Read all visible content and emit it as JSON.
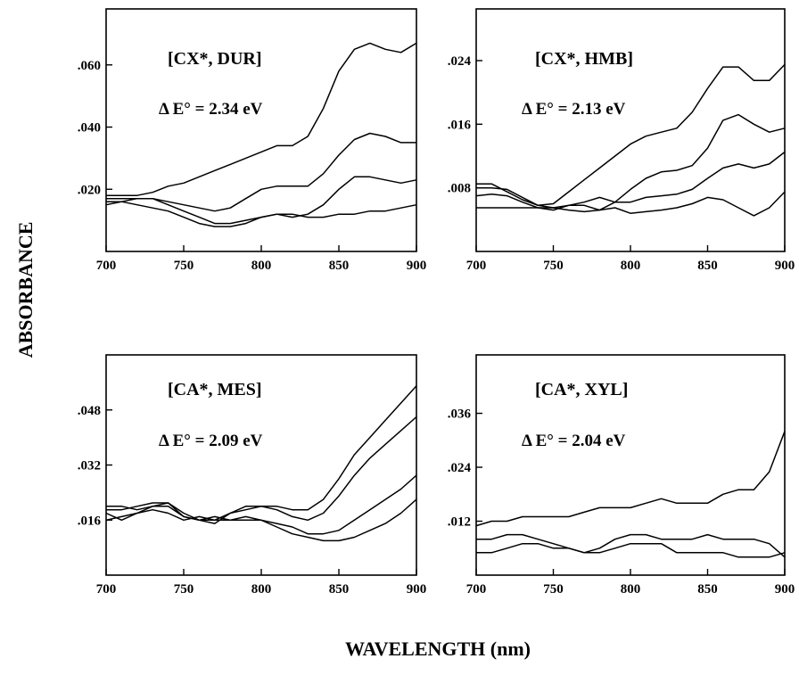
{
  "figure": {
    "ylabel": "ABSORBANCE",
    "xlabel": "WAVELENGTH (nm)"
  },
  "chart_data": [
    {
      "type": "line",
      "title": "[CX*, DUR]",
      "delta_e": "Δ E° = 2.34 eV",
      "xlim": [
        700,
        900
      ],
      "ylim": [
        0,
        0.078
      ],
      "x_ticks": [
        700,
        750,
        800,
        850,
        900
      ],
      "x_tick_labels": [
        "700",
        "750",
        "800",
        "850",
        "900"
      ],
      "y_ticks": [
        0.02,
        0.04,
        0.06
      ],
      "y_tick_labels": [
        ".020",
        ".040",
        ".060"
      ],
      "series": [
        {
          "x": [
            700,
            710,
            720,
            730,
            740,
            750,
            760,
            770,
            780,
            790,
            800,
            810,
            820,
            830,
            840,
            850,
            860,
            870,
            880,
            890,
            900
          ],
          "y": [
            0.018,
            0.018,
            0.018,
            0.019,
            0.021,
            0.022,
            0.024,
            0.026,
            0.028,
            0.03,
            0.032,
            0.034,
            0.034,
            0.037,
            0.046,
            0.058,
            0.065,
            0.067,
            0.065,
            0.064,
            0.067
          ]
        },
        {
          "x": [
            700,
            710,
            720,
            730,
            740,
            750,
            760,
            770,
            780,
            790,
            800,
            810,
            820,
            830,
            840,
            850,
            860,
            870,
            880,
            890,
            900
          ],
          "y": [
            0.017,
            0.017,
            0.017,
            0.017,
            0.016,
            0.015,
            0.014,
            0.013,
            0.014,
            0.017,
            0.02,
            0.021,
            0.021,
            0.021,
            0.025,
            0.031,
            0.036,
            0.038,
            0.037,
            0.035,
            0.035
          ]
        },
        {
          "x": [
            700,
            710,
            720,
            730,
            740,
            750,
            760,
            770,
            780,
            790,
            800,
            810,
            820,
            830,
            840,
            850,
            860,
            870,
            880,
            890,
            900
          ],
          "y": [
            0.016,
            0.016,
            0.017,
            0.017,
            0.015,
            0.013,
            0.011,
            0.009,
            0.009,
            0.01,
            0.011,
            0.012,
            0.011,
            0.012,
            0.015,
            0.02,
            0.024,
            0.024,
            0.023,
            0.022,
            0.023
          ]
        },
        {
          "x": [
            700,
            710,
            720,
            730,
            740,
            750,
            760,
            770,
            780,
            790,
            800,
            810,
            820,
            830,
            840,
            850,
            860,
            870,
            880,
            890,
            900
          ],
          "y": [
            0.015,
            0.016,
            0.015,
            0.014,
            0.013,
            0.011,
            0.009,
            0.008,
            0.008,
            0.009,
            0.011,
            0.012,
            0.012,
            0.011,
            0.011,
            0.012,
            0.012,
            0.013,
            0.013,
            0.014,
            0.015
          ]
        }
      ]
    },
    {
      "type": "line",
      "title": "[CX*, HMB]",
      "delta_e": "Δ E° = 2.13 eV",
      "xlim": [
        700,
        900
      ],
      "ylim": [
        0,
        0.0305
      ],
      "x_ticks": [
        700,
        750,
        800,
        850,
        900
      ],
      "x_tick_labels": [
        "700",
        "750",
        "800",
        "850",
        "900"
      ],
      "y_ticks": [
        0.008,
        0.016,
        0.024
      ],
      "y_tick_labels": [
        ".008",
        ".016",
        ".024"
      ],
      "series": [
        {
          "x": [
            700,
            710,
            720,
            730,
            740,
            750,
            760,
            770,
            780,
            790,
            800,
            810,
            820,
            830,
            840,
            850,
            860,
            870,
            880,
            890,
            900
          ],
          "y": [
            0.0085,
            0.0085,
            0.0075,
            0.0065,
            0.0058,
            0.006,
            0.0075,
            0.009,
            0.0105,
            0.012,
            0.0135,
            0.0145,
            0.015,
            0.0155,
            0.0175,
            0.0205,
            0.0232,
            0.0232,
            0.0215,
            0.0215,
            0.0235
          ]
        },
        {
          "x": [
            700,
            710,
            720,
            730,
            740,
            750,
            760,
            770,
            780,
            790,
            800,
            810,
            820,
            830,
            840,
            850,
            860,
            870,
            880,
            890,
            900
          ],
          "y": [
            0.008,
            0.008,
            0.0078,
            0.0068,
            0.0058,
            0.0055,
            0.0058,
            0.0058,
            0.0052,
            0.0062,
            0.0078,
            0.0092,
            0.01,
            0.0102,
            0.0108,
            0.013,
            0.0165,
            0.0172,
            0.016,
            0.015,
            0.0155
          ]
        },
        {
          "x": [
            700,
            710,
            720,
            730,
            740,
            750,
            760,
            770,
            780,
            790,
            800,
            810,
            820,
            830,
            840,
            850,
            860,
            870,
            880,
            890,
            900
          ],
          "y": [
            0.007,
            0.0072,
            0.007,
            0.0062,
            0.0055,
            0.0052,
            0.0058,
            0.0062,
            0.0068,
            0.0062,
            0.0062,
            0.0068,
            0.007,
            0.0072,
            0.0078,
            0.0092,
            0.0105,
            0.011,
            0.0105,
            0.011,
            0.0125
          ]
        },
        {
          "x": [
            700,
            710,
            720,
            730,
            740,
            750,
            760,
            770,
            780,
            790,
            800,
            810,
            820,
            830,
            840,
            850,
            860,
            870,
            880,
            890,
            900
          ],
          "y": [
            0.0055,
            0.0055,
            0.0055,
            0.0055,
            0.0055,
            0.0055,
            0.0052,
            0.005,
            0.0052,
            0.0055,
            0.0048,
            0.005,
            0.0052,
            0.0055,
            0.006,
            0.0068,
            0.0065,
            0.0055,
            0.0045,
            0.0055,
            0.0075
          ]
        }
      ]
    },
    {
      "type": "line",
      "title": "[CA*, MES]",
      "delta_e": "Δ E° = 2.09 eV",
      "xlim": [
        700,
        900
      ],
      "ylim": [
        0,
        0.064
      ],
      "x_ticks": [
        700,
        750,
        800,
        850,
        900
      ],
      "x_tick_labels": [
        "700",
        "750",
        "800",
        "850",
        "900"
      ],
      "y_ticks": [
        0.016,
        0.032,
        0.048
      ],
      "y_tick_labels": [
        ".016",
        ".032",
        ".048"
      ],
      "series": [
        {
          "x": [
            700,
            710,
            720,
            730,
            740,
            750,
            760,
            770,
            780,
            790,
            800,
            810,
            820,
            830,
            840,
            850,
            860,
            870,
            880,
            890,
            900
          ],
          "y": [
            0.02,
            0.02,
            0.019,
            0.02,
            0.021,
            0.017,
            0.016,
            0.016,
            0.018,
            0.019,
            0.02,
            0.02,
            0.019,
            0.019,
            0.022,
            0.028,
            0.035,
            0.04,
            0.045,
            0.05,
            0.055
          ]
        },
        {
          "x": [
            700,
            710,
            720,
            730,
            740,
            750,
            760,
            770,
            780,
            790,
            800,
            810,
            820,
            830,
            840,
            850,
            860,
            870,
            880,
            890,
            900
          ],
          "y": [
            0.019,
            0.019,
            0.02,
            0.021,
            0.021,
            0.018,
            0.016,
            0.015,
            0.018,
            0.02,
            0.02,
            0.019,
            0.017,
            0.016,
            0.018,
            0.023,
            0.029,
            0.034,
            0.038,
            0.042,
            0.046
          ]
        },
        {
          "x": [
            700,
            710,
            720,
            730,
            740,
            750,
            760,
            770,
            780,
            790,
            800,
            810,
            820,
            830,
            840,
            850,
            860,
            870,
            880,
            890,
            900
          ],
          "y": [
            0.016,
            0.017,
            0.018,
            0.019,
            0.018,
            0.016,
            0.017,
            0.016,
            0.016,
            0.017,
            0.016,
            0.015,
            0.014,
            0.012,
            0.012,
            0.013,
            0.016,
            0.019,
            0.022,
            0.025,
            0.029
          ]
        },
        {
          "x": [
            700,
            710,
            720,
            730,
            740,
            750,
            760,
            770,
            780,
            790,
            800,
            810,
            820,
            830,
            840,
            850,
            860,
            870,
            880,
            890,
            900
          ],
          "y": [
            0.018,
            0.016,
            0.018,
            0.02,
            0.02,
            0.017,
            0.016,
            0.017,
            0.016,
            0.016,
            0.016,
            0.014,
            0.012,
            0.011,
            0.01,
            0.01,
            0.011,
            0.013,
            0.015,
            0.018,
            0.022
          ]
        }
      ]
    },
    {
      "type": "line",
      "title": "[CA*, XYL]",
      "delta_e": "Δ E° = 2.04 eV",
      "xlim": [
        700,
        900
      ],
      "ylim": [
        0,
        0.049
      ],
      "x_ticks": [
        700,
        750,
        800,
        850,
        900
      ],
      "x_tick_labels": [
        "700",
        "750",
        "800",
        "850",
        "900"
      ],
      "y_ticks": [
        0.012,
        0.024,
        0.036
      ],
      "y_tick_labels": [
        ".012",
        ".024",
        ".036"
      ],
      "series": [
        {
          "x": [
            700,
            710,
            720,
            730,
            740,
            750,
            760,
            770,
            780,
            790,
            800,
            810,
            820,
            830,
            840,
            850,
            860,
            870,
            880,
            890,
            900
          ],
          "y": [
            0.011,
            0.012,
            0.012,
            0.013,
            0.013,
            0.013,
            0.013,
            0.014,
            0.015,
            0.015,
            0.015,
            0.016,
            0.017,
            0.016,
            0.016,
            0.016,
            0.018,
            0.019,
            0.019,
            0.023,
            0.032
          ]
        },
        {
          "x": [
            700,
            710,
            720,
            730,
            740,
            750,
            760,
            770,
            780,
            790,
            800,
            810,
            820,
            830,
            840,
            850,
            860,
            870,
            880,
            890,
            900
          ],
          "y": [
            0.008,
            0.008,
            0.009,
            0.009,
            0.008,
            0.007,
            0.006,
            0.005,
            0.006,
            0.008,
            0.009,
            0.009,
            0.008,
            0.008,
            0.008,
            0.009,
            0.008,
            0.008,
            0.008,
            0.007,
            0.004
          ]
        },
        {
          "x": [
            700,
            710,
            720,
            730,
            740,
            750,
            760,
            770,
            780,
            790,
            800,
            810,
            820,
            830,
            840,
            850,
            860,
            870,
            880,
            890,
            900
          ],
          "y": [
            0.005,
            0.005,
            0.006,
            0.007,
            0.007,
            0.006,
            0.006,
            0.005,
            0.005,
            0.006,
            0.007,
            0.007,
            0.007,
            0.005,
            0.005,
            0.005,
            0.005,
            0.004,
            0.004,
            0.004,
            0.005
          ]
        }
      ]
    }
  ]
}
